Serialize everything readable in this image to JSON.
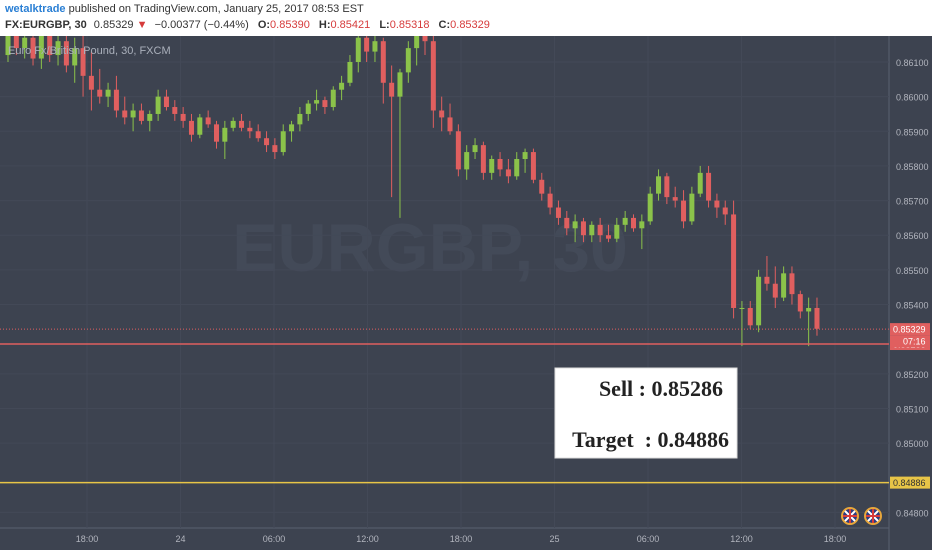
{
  "header": {
    "author": "wetalktrade",
    "published": "published on TradingView.com, January 25, 2017 08:53 EST",
    "symbol": "FX:EURGBP, 30",
    "last": "0.85329",
    "change_arrow": "▼",
    "change": "−0.00377 (−0.44%)",
    "open_label": "O:",
    "open": "0.85390",
    "high_label": "H:",
    "high": "0.85421",
    "low_label": "L:",
    "low": "0.85318",
    "close_label": "C:",
    "close": "0.85329"
  },
  "chart_data": {
    "type": "candlestick",
    "title": "Euro Fx/British Pound, 30, FXCM",
    "watermark": "EURGBP, 30",
    "ylim": [
      0.84755,
      0.86175
    ],
    "y_ticks": [
      "0.86100",
      "0.86000",
      "0.85900",
      "0.85800",
      "0.85700",
      "0.85600",
      "0.85500",
      "0.85400",
      "0.85200",
      "0.85100",
      "0.85000",
      "0.84800"
    ],
    "x_ticks": [
      "18:00",
      "24",
      "06:00",
      "12:00",
      "18:00",
      "25",
      "06:00",
      "12:00",
      "18:00"
    ],
    "candles": [
      {
        "o": 0.8612,
        "h": 0.8619,
        "l": 0.861,
        "c": 0.8618
      },
      {
        "o": 0.8618,
        "h": 0.8619,
        "l": 0.8612,
        "c": 0.8614
      },
      {
        "o": 0.8614,
        "h": 0.8619,
        "l": 0.8611,
        "c": 0.8617
      },
      {
        "o": 0.8617,
        "h": 0.8619,
        "l": 0.8609,
        "c": 0.8611
      },
      {
        "o": 0.8611,
        "h": 0.8619,
        "l": 0.8608,
        "c": 0.8618
      },
      {
        "o": 0.8618,
        "h": 0.8619,
        "l": 0.861,
        "c": 0.8612
      },
      {
        "o": 0.8612,
        "h": 0.8619,
        "l": 0.8609,
        "c": 0.8616
      },
      {
        "o": 0.8616,
        "h": 0.8619,
        "l": 0.8607,
        "c": 0.8609
      },
      {
        "o": 0.8609,
        "h": 0.8617,
        "l": 0.8604,
        "c": 0.8614
      },
      {
        "o": 0.8614,
        "h": 0.8619,
        "l": 0.86,
        "c": 0.8606
      },
      {
        "o": 0.8606,
        "h": 0.8613,
        "l": 0.8596,
        "c": 0.8602
      },
      {
        "o": 0.8602,
        "h": 0.8608,
        "l": 0.8598,
        "c": 0.86
      },
      {
        "o": 0.86,
        "h": 0.8604,
        "l": 0.8597,
        "c": 0.8602
      },
      {
        "o": 0.8602,
        "h": 0.8606,
        "l": 0.8594,
        "c": 0.8596
      },
      {
        "o": 0.8596,
        "h": 0.86,
        "l": 0.8592,
        "c": 0.8594
      },
      {
        "o": 0.8594,
        "h": 0.8598,
        "l": 0.859,
        "c": 0.8596
      },
      {
        "o": 0.8596,
        "h": 0.8598,
        "l": 0.8592,
        "c": 0.8593
      },
      {
        "o": 0.8593,
        "h": 0.8596,
        "l": 0.859,
        "c": 0.8595
      },
      {
        "o": 0.8595,
        "h": 0.8602,
        "l": 0.8593,
        "c": 0.86
      },
      {
        "o": 0.86,
        "h": 0.8602,
        "l": 0.8596,
        "c": 0.8597
      },
      {
        "o": 0.8597,
        "h": 0.8599,
        "l": 0.8593,
        "c": 0.8595
      },
      {
        "o": 0.8595,
        "h": 0.8597,
        "l": 0.8591,
        "c": 0.8593
      },
      {
        "o": 0.8593,
        "h": 0.8595,
        "l": 0.8587,
        "c": 0.8589
      },
      {
        "o": 0.8589,
        "h": 0.8595,
        "l": 0.8588,
        "c": 0.8594
      },
      {
        "o": 0.8594,
        "h": 0.8596,
        "l": 0.8591,
        "c": 0.8592
      },
      {
        "o": 0.8592,
        "h": 0.8593,
        "l": 0.8585,
        "c": 0.8587
      },
      {
        "o": 0.8587,
        "h": 0.8593,
        "l": 0.8582,
        "c": 0.8591
      },
      {
        "o": 0.8591,
        "h": 0.8594,
        "l": 0.859,
        "c": 0.8593
      },
      {
        "o": 0.8593,
        "h": 0.8595,
        "l": 0.859,
        "c": 0.8591
      },
      {
        "o": 0.8591,
        "h": 0.8593,
        "l": 0.8588,
        "c": 0.859
      },
      {
        "o": 0.859,
        "h": 0.8592,
        "l": 0.8587,
        "c": 0.8588
      },
      {
        "o": 0.8588,
        "h": 0.859,
        "l": 0.8584,
        "c": 0.8586
      },
      {
        "o": 0.8586,
        "h": 0.8588,
        "l": 0.8582,
        "c": 0.8584
      },
      {
        "o": 0.8584,
        "h": 0.8592,
        "l": 0.8583,
        "c": 0.859
      },
      {
        "o": 0.859,
        "h": 0.8593,
        "l": 0.8587,
        "c": 0.8592
      },
      {
        "o": 0.8592,
        "h": 0.8597,
        "l": 0.859,
        "c": 0.8595
      },
      {
        "o": 0.8595,
        "h": 0.8599,
        "l": 0.8593,
        "c": 0.8598
      },
      {
        "o": 0.8598,
        "h": 0.8602,
        "l": 0.8596,
        "c": 0.8599
      },
      {
        "o": 0.8599,
        "h": 0.86,
        "l": 0.8595,
        "c": 0.8597
      },
      {
        "o": 0.8597,
        "h": 0.8603,
        "l": 0.8596,
        "c": 0.8602
      },
      {
        "o": 0.8602,
        "h": 0.8606,
        "l": 0.8599,
        "c": 0.8604
      },
      {
        "o": 0.8604,
        "h": 0.8612,
        "l": 0.8603,
        "c": 0.861
      },
      {
        "o": 0.861,
        "h": 0.8619,
        "l": 0.8607,
        "c": 0.8617
      },
      {
        "o": 0.8617,
        "h": 0.8619,
        "l": 0.861,
        "c": 0.8613
      },
      {
        "o": 0.8613,
        "h": 0.8619,
        "l": 0.861,
        "c": 0.8616
      },
      {
        "o": 0.8616,
        "h": 0.8617,
        "l": 0.8598,
        "c": 0.8604
      },
      {
        "o": 0.8604,
        "h": 0.8609,
        "l": 0.8571,
        "c": 0.86
      },
      {
        "o": 0.86,
        "h": 0.8608,
        "l": 0.8565,
        "c": 0.8607
      },
      {
        "o": 0.8607,
        "h": 0.8616,
        "l": 0.8604,
        "c": 0.8614
      },
      {
        "o": 0.8614,
        "h": 0.8619,
        "l": 0.8609,
        "c": 0.8618
      },
      {
        "o": 0.8618,
        "h": 0.8619,
        "l": 0.8612,
        "c": 0.8616
      },
      {
        "o": 0.8616,
        "h": 0.8619,
        "l": 0.8591,
        "c": 0.8596
      },
      {
        "o": 0.8596,
        "h": 0.86,
        "l": 0.859,
        "c": 0.8594
      },
      {
        "o": 0.8594,
        "h": 0.8598,
        "l": 0.8589,
        "c": 0.859
      },
      {
        "o": 0.859,
        "h": 0.8592,
        "l": 0.8577,
        "c": 0.8579
      },
      {
        "o": 0.8579,
        "h": 0.8586,
        "l": 0.8576,
        "c": 0.8584
      },
      {
        "o": 0.8584,
        "h": 0.8588,
        "l": 0.8582,
        "c": 0.8586
      },
      {
        "o": 0.8586,
        "h": 0.8587,
        "l": 0.8576,
        "c": 0.8578
      },
      {
        "o": 0.8578,
        "h": 0.8583,
        "l": 0.8576,
        "c": 0.8582
      },
      {
        "o": 0.8582,
        "h": 0.8584,
        "l": 0.8577,
        "c": 0.8579
      },
      {
        "o": 0.8579,
        "h": 0.8582,
        "l": 0.8575,
        "c": 0.8577
      },
      {
        "o": 0.8577,
        "h": 0.8584,
        "l": 0.8576,
        "c": 0.8582
      },
      {
        "o": 0.8582,
        "h": 0.8585,
        "l": 0.8578,
        "c": 0.8584
      },
      {
        "o": 0.8584,
        "h": 0.8585,
        "l": 0.8575,
        "c": 0.8576
      },
      {
        "o": 0.8576,
        "h": 0.8578,
        "l": 0.857,
        "c": 0.8572
      },
      {
        "o": 0.8572,
        "h": 0.8574,
        "l": 0.8566,
        "c": 0.8568
      },
      {
        "o": 0.8568,
        "h": 0.857,
        "l": 0.8563,
        "c": 0.8565
      },
      {
        "o": 0.8565,
        "h": 0.8567,
        "l": 0.856,
        "c": 0.8562
      },
      {
        "o": 0.8562,
        "h": 0.8566,
        "l": 0.8558,
        "c": 0.8564
      },
      {
        "o": 0.8564,
        "h": 0.8565,
        "l": 0.8558,
        "c": 0.856
      },
      {
        "o": 0.856,
        "h": 0.8564,
        "l": 0.8558,
        "c": 0.8563
      },
      {
        "o": 0.8563,
        "h": 0.8565,
        "l": 0.8558,
        "c": 0.856
      },
      {
        "o": 0.856,
        "h": 0.8563,
        "l": 0.8558,
        "c": 0.8559
      },
      {
        "o": 0.8559,
        "h": 0.8565,
        "l": 0.8558,
        "c": 0.8563
      },
      {
        "o": 0.8563,
        "h": 0.8567,
        "l": 0.8561,
        "c": 0.8565
      },
      {
        "o": 0.8565,
        "h": 0.8566,
        "l": 0.8561,
        "c": 0.8562
      },
      {
        "o": 0.8562,
        "h": 0.8566,
        "l": 0.8556,
        "c": 0.8564
      },
      {
        "o": 0.8564,
        "h": 0.8574,
        "l": 0.8563,
        "c": 0.8572
      },
      {
        "o": 0.8572,
        "h": 0.8579,
        "l": 0.857,
        "c": 0.8577
      },
      {
        "o": 0.8577,
        "h": 0.8578,
        "l": 0.8569,
        "c": 0.8571
      },
      {
        "o": 0.8571,
        "h": 0.8574,
        "l": 0.8568,
        "c": 0.857
      },
      {
        "o": 0.857,
        "h": 0.8573,
        "l": 0.8562,
        "c": 0.8564
      },
      {
        "o": 0.8564,
        "h": 0.8574,
        "l": 0.8563,
        "c": 0.8572
      },
      {
        "o": 0.8572,
        "h": 0.858,
        "l": 0.8571,
        "c": 0.8578
      },
      {
        "o": 0.8578,
        "h": 0.858,
        "l": 0.8568,
        "c": 0.857
      },
      {
        "o": 0.857,
        "h": 0.8572,
        "l": 0.8565,
        "c": 0.8568
      },
      {
        "o": 0.8568,
        "h": 0.857,
        "l": 0.8563,
        "c": 0.8566
      },
      {
        "o": 0.8566,
        "h": 0.857,
        "l": 0.8536,
        "c": 0.8539
      },
      {
        "o": 0.8539,
        "h": 0.8541,
        "l": 0.8528,
        "c": 0.8539
      },
      {
        "o": 0.8539,
        "h": 0.8541,
        "l": 0.8533,
        "c": 0.8534
      },
      {
        "o": 0.8534,
        "h": 0.855,
        "l": 0.8532,
        "c": 0.8548
      },
      {
        "o": 0.8548,
        "h": 0.8554,
        "l": 0.8544,
        "c": 0.8546
      },
      {
        "o": 0.8546,
        "h": 0.8551,
        "l": 0.8539,
        "c": 0.8542
      },
      {
        "o": 0.8542,
        "h": 0.8551,
        "l": 0.8541,
        "c": 0.8549
      },
      {
        "o": 0.8549,
        "h": 0.8551,
        "l": 0.854,
        "c": 0.8543
      },
      {
        "o": 0.8543,
        "h": 0.8544,
        "l": 0.8536,
        "c": 0.8538
      },
      {
        "o": 0.8538,
        "h": 0.8542,
        "l": 0.8528,
        "c": 0.8539
      },
      {
        "o": 0.8539,
        "h": 0.8542,
        "l": 0.8531,
        "c": 0.8533
      }
    ],
    "levels": [
      {
        "price": 0.85329,
        "label": "0.85329",
        "color": "#e05f5f",
        "style": "dotted"
      },
      {
        "price": 0.85286,
        "label": "0.85286",
        "color": "#e05f5f",
        "style": "solid"
      },
      {
        "price": 0.84886,
        "label": "0.84886",
        "color": "#e8c547",
        "style": "solid"
      }
    ],
    "countdown": "07:16",
    "annotation": {
      "line1": "Sell : 0.85286",
      "line2": "Target  : 0.84886"
    },
    "colors": {
      "background": "#3d4350",
      "up": "#8bc34a",
      "down": "#e05f5f",
      "axis_text": "#b2b5be",
      "grid": "#434957"
    }
  }
}
